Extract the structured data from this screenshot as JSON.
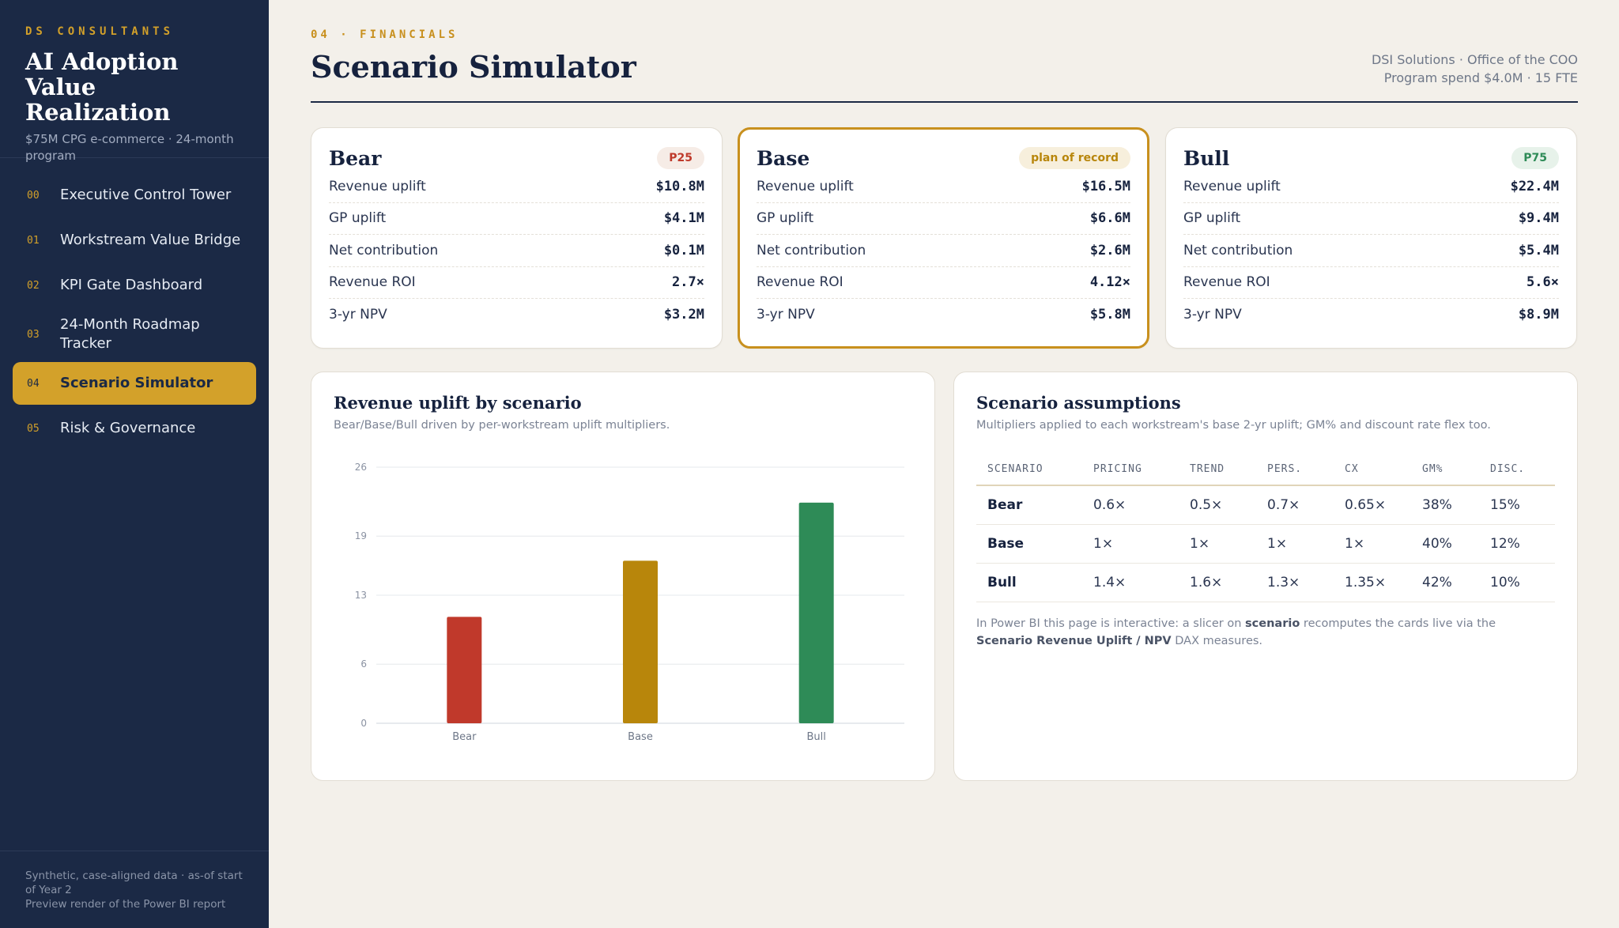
{
  "sidebar": {
    "kicker": "DS CONSULTANTS",
    "title_line1": "AI Adoption",
    "title_line2": "Value Realization",
    "subtitle": "$75M CPG e-commerce · 24-month program",
    "items": [
      {
        "num": "00",
        "label": "Executive Control Tower"
      },
      {
        "num": "01",
        "label": "Workstream Value Bridge"
      },
      {
        "num": "02",
        "label": "KPI Gate Dashboard"
      },
      {
        "num": "03",
        "label": "24-Month Roadmap Tracker"
      },
      {
        "num": "04",
        "label": "Scenario Simulator",
        "active": true
      },
      {
        "num": "05",
        "label": "Risk & Governance"
      }
    ],
    "footer_line1": "Synthetic, case-aligned data · as-of start of Year 2",
    "footer_line2": "Preview render of the Power BI report"
  },
  "header": {
    "kicker": "04 · FINANCIALS",
    "title": "Scenario Simulator",
    "org_line1": "DSI Solutions · Office of the COO",
    "org_line2": "Program spend $4.0M · 15 FTE"
  },
  "cards": [
    {
      "name": "Bear",
      "badge": "P25",
      "metrics": [
        {
          "label": "Revenue uplift",
          "value": "$10.8M"
        },
        {
          "label": "GP uplift",
          "value": "$4.1M"
        },
        {
          "label": "Net contribution",
          "value": "$0.1M"
        },
        {
          "label": "Revenue ROI",
          "value": "2.7×"
        },
        {
          "label": "3-yr NPV",
          "value": "$3.2M"
        }
      ]
    },
    {
      "name": "Base",
      "badge": "plan of record",
      "metrics": [
        {
          "label": "Revenue uplift",
          "value": "$16.5M"
        },
        {
          "label": "GP uplift",
          "value": "$6.6M"
        },
        {
          "label": "Net contribution",
          "value": "$2.6M"
        },
        {
          "label": "Revenue ROI",
          "value": "4.12×"
        },
        {
          "label": "3-yr NPV",
          "value": "$5.8M"
        }
      ]
    },
    {
      "name": "Bull",
      "badge": "P75",
      "metrics": [
        {
          "label": "Revenue uplift",
          "value": "$22.4M"
        },
        {
          "label": "GP uplift",
          "value": "$9.4M"
        },
        {
          "label": "Net contribution",
          "value": "$5.4M"
        },
        {
          "label": "Revenue ROI",
          "value": "5.6×"
        },
        {
          "label": "3-yr NPV",
          "value": "$8.9M"
        }
      ]
    }
  ],
  "chart_panel": {
    "title": "Revenue uplift by scenario",
    "subtitle": "Bear/Base/Bull driven by per-workstream uplift multipliers."
  },
  "chart_data": {
    "type": "bar",
    "title": "Revenue uplift by scenario",
    "categories": [
      "Bear",
      "Base",
      "Bull"
    ],
    "values": [
      10.8,
      16.5,
      22.4
    ],
    "colors": [
      "#c0392b",
      "#b8860b",
      "#2e8b57"
    ],
    "yticks": [
      "0",
      "6",
      "13",
      "19",
      "26"
    ],
    "ylim": [
      0,
      26
    ],
    "grid": true
  },
  "assumptions": {
    "title": "Scenario assumptions",
    "subtitle": "Multipliers applied to each workstream's base 2-yr uplift; GM% and discount rate flex too.",
    "columns": [
      "SCENARIO",
      "PRICING",
      "TREND",
      "PERS.",
      "CX",
      "GM%",
      "DISC."
    ],
    "rows": [
      [
        "Bear",
        "0.6×",
        "0.5×",
        "0.7×",
        "0.65×",
        "38%",
        "15%"
      ],
      [
        "Base",
        "1×",
        "1×",
        "1×",
        "1×",
        "40%",
        "12%"
      ],
      [
        "Bull",
        "1.4×",
        "1.6×",
        "1.3×",
        "1.35×",
        "42%",
        "10%"
      ]
    ],
    "note_1": "In Power BI this page is interactive: a slicer on ",
    "note_2": "scenario",
    "note_3": " recomputes the cards live via the ",
    "note_4": "Scenario Revenue Uplift / NPV",
    "note_5": " DAX measures."
  }
}
